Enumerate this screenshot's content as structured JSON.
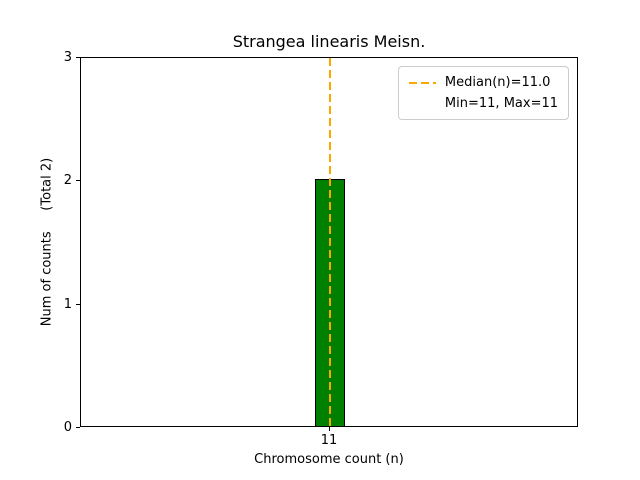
{
  "title": "Strangea linearis Meisn.",
  "chart_data": {
    "type": "bar",
    "title": "Strangea linearis Meisn.",
    "xlabel": "Chromosome count (n)",
    "ylabel": "Num of counts     (Total 2)",
    "categories": [
      "11"
    ],
    "values": [
      2
    ],
    "total_counts": 2,
    "ylim": [
      0,
      3
    ],
    "yticks": [
      0,
      1,
      2,
      3
    ],
    "grid": false,
    "bar_color": "#008000",
    "bar_edge_color": "#000000",
    "median_line": {
      "value": 11.0,
      "color": "#FFA500",
      "style": "dashed"
    },
    "stats": {
      "median": 11.0,
      "min": 11,
      "max": 11
    },
    "legend": {
      "position": "upper right",
      "entries": [
        {
          "label": "Median(n)=11.0",
          "sample": "dashed-line",
          "color": "#FFA500"
        },
        {
          "label": "Min=11, Max=11",
          "sample": "none"
        }
      ]
    }
  }
}
